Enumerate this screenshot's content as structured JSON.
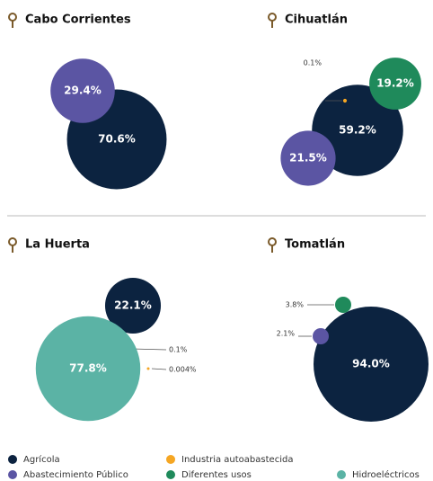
{
  "legend": {
    "names": [
      "Agrícola",
      "Abastecimiento Público",
      "Industria autoabastecida",
      "Diferentes usos",
      "Hidroeléctricos"
    ],
    "colors": [
      "#0c2340",
      "#5b55a3",
      "#f5a623",
      "#1f8a5b",
      "#5bb3a5"
    ]
  },
  "chart_data": [
    {
      "type": "bubble",
      "title": "Cabo Corrientes",
      "values": [
        70.6,
        29.4,
        null,
        null,
        null
      ],
      "value_labels": [
        "70.6%",
        "29.4%",
        null,
        null,
        null
      ]
    },
    {
      "type": "bubble",
      "title": "Cihuatlán",
      "values": [
        59.2,
        21.5,
        0.1,
        19.2,
        null
      ],
      "value_labels": [
        "59.2%",
        "21.5%",
        "0.1%",
        "19.2%",
        null
      ]
    },
    {
      "type": "bubble",
      "title": "La Huerta",
      "values": [
        22.1,
        0.1,
        0.004,
        null,
        77.8
      ],
      "value_labels": [
        "22.1%",
        "0.1%",
        "0.004%",
        null,
        "77.8%"
      ]
    },
    {
      "type": "bubble",
      "title": "Tomatlán",
      "values": [
        94.0,
        2.1,
        null,
        3.8,
        null
      ],
      "value_labels": [
        "94.0%",
        "2.1%",
        null,
        "3.8%",
        null
      ]
    }
  ]
}
